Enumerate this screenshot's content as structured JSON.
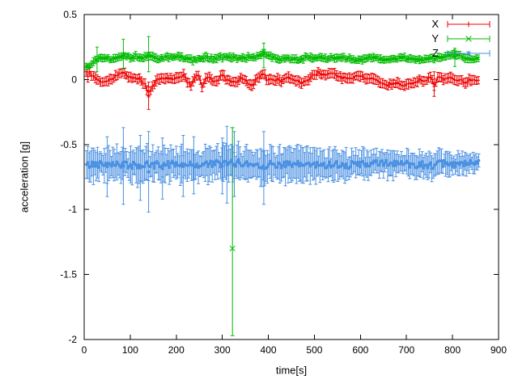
{
  "chart_data": {
    "type": "scatter",
    "style": "points-with-errorbars-and-lines",
    "title": "",
    "xlabel": "time[s]",
    "ylabel": "acceleration [g]",
    "xlim": [
      0,
      900
    ],
    "ylim": [
      -2,
      0.5
    ],
    "xticks": [
      0,
      100,
      200,
      300,
      400,
      500,
      600,
      700,
      800,
      900
    ],
    "yticks": [
      -2,
      -1.5,
      -1,
      -0.5,
      0,
      0.5
    ],
    "grid": false,
    "legend_position": "top-right",
    "background": "#ffffff",
    "axis_color": "#000000",
    "series": [
      {
        "name": "X",
        "color": "#ee0000",
        "marker": "plus",
        "seed": 11,
        "x_start": 4,
        "x_end": 858,
        "step": 4,
        "noise": 0.012,
        "err": 0.028,
        "err_jitter": 0.012,
        "err_profile": [
          [
            4,
            1
          ],
          [
            858,
            1
          ]
        ],
        "trend": [
          [
            4,
            0.06
          ],
          [
            12,
            0.05
          ],
          [
            22,
            0.02
          ],
          [
            32,
            -0.01
          ],
          [
            45,
            -0.02
          ],
          [
            58,
            0.0
          ],
          [
            70,
            0.03
          ],
          [
            82,
            0.05
          ],
          [
            95,
            0.03
          ],
          [
            108,
            0.01
          ],
          [
            120,
            0.0
          ],
          [
            132,
            -0.03
          ],
          [
            138,
            -0.1
          ],
          [
            146,
            -0.07
          ],
          [
            155,
            -0.01
          ],
          [
            168,
            0.01
          ],
          [
            180,
            0.02
          ],
          [
            192,
            0.0
          ],
          [
            205,
            0.01
          ],
          [
            215,
            0.04
          ],
          [
            225,
            -0.02
          ],
          [
            232,
            -0.06
          ],
          [
            240,
            0.02
          ],
          [
            248,
            0.03
          ],
          [
            256,
            -0.05
          ],
          [
            264,
            0.0
          ],
          [
            272,
            0.02
          ],
          [
            280,
            -0.02
          ],
          [
            290,
            0.0
          ],
          [
            300,
            0.03
          ],
          [
            310,
            0.0
          ],
          [
            320,
            -0.01
          ],
          [
            332,
            -0.02
          ],
          [
            342,
            0.01
          ],
          [
            355,
            -0.02
          ],
          [
            365,
            -0.04
          ],
          [
            375,
            0.0
          ],
          [
            383,
            0.04
          ],
          [
            390,
            0.05
          ],
          [
            397,
            -0.02
          ],
          [
            405,
            0.01
          ],
          [
            418,
            0.0
          ],
          [
            430,
            -0.01
          ],
          [
            445,
            0.01
          ],
          [
            460,
            0.0
          ],
          [
            472,
            -0.02
          ],
          [
            485,
            0.0
          ],
          [
            498,
            0.03
          ],
          [
            508,
            0.05
          ],
          [
            520,
            0.04
          ],
          [
            532,
            0.05
          ],
          [
            545,
            0.04
          ],
          [
            558,
            0.02
          ],
          [
            570,
            0.0
          ],
          [
            582,
            0.01
          ],
          [
            595,
            0.03
          ],
          [
            608,
            0.02
          ],
          [
            620,
            0.01
          ],
          [
            632,
            0.0
          ],
          [
            645,
            -0.02
          ],
          [
            658,
            -0.05
          ],
          [
            668,
            -0.03
          ],
          [
            680,
            -0.02
          ],
          [
            692,
            -0.05
          ],
          [
            702,
            -0.04
          ],
          [
            715,
            -0.02
          ],
          [
            728,
            0.0
          ],
          [
            740,
            -0.01
          ],
          [
            752,
            0.03
          ],
          [
            760,
            -0.05
          ],
          [
            768,
            0.02
          ],
          [
            780,
            0.0
          ],
          [
            795,
            0.02
          ],
          [
            810,
            0.0
          ],
          [
            825,
            -0.02
          ],
          [
            840,
            0.0
          ],
          [
            858,
            0.0
          ]
        ],
        "spikes": [
          {
            "x": 8,
            "lo": -0.02,
            "hi": 0.1
          },
          {
            "x": 140,
            "lo": -0.23,
            "hi": -0.02
          },
          {
            "x": 760,
            "lo": -0.13,
            "hi": 0.06
          }
        ],
        "outliers": []
      },
      {
        "name": "Y",
        "color": "#00bb00",
        "marker": "cross",
        "seed": 13,
        "x_start": 4,
        "x_end": 858,
        "step": 4,
        "noise": 0.009,
        "err": 0.02,
        "err_jitter": 0.012,
        "err_profile": [
          [
            4,
            1
          ],
          [
            858,
            1
          ]
        ],
        "trend": [
          [
            4,
            0.1
          ],
          [
            10,
            0.11
          ],
          [
            18,
            0.13
          ],
          [
            28,
            0.16
          ],
          [
            40,
            0.17
          ],
          [
            55,
            0.16
          ],
          [
            70,
            0.17
          ],
          [
            85,
            0.19
          ],
          [
            100,
            0.17
          ],
          [
            115,
            0.18
          ],
          [
            130,
            0.17
          ],
          [
            145,
            0.18
          ],
          [
            160,
            0.16
          ],
          [
            175,
            0.17
          ],
          [
            190,
            0.17
          ],
          [
            205,
            0.18
          ],
          [
            220,
            0.16
          ],
          [
            235,
            0.15
          ],
          [
            250,
            0.16
          ],
          [
            265,
            0.17
          ],
          [
            280,
            0.16
          ],
          [
            295,
            0.17
          ],
          [
            310,
            0.17
          ],
          [
            325,
            0.17
          ],
          [
            340,
            0.16
          ],
          [
            355,
            0.17
          ],
          [
            370,
            0.17
          ],
          [
            382,
            0.18
          ],
          [
            390,
            0.22
          ],
          [
            398,
            0.18
          ],
          [
            410,
            0.17
          ],
          [
            425,
            0.16
          ],
          [
            440,
            0.17
          ],
          [
            455,
            0.15
          ],
          [
            470,
            0.16
          ],
          [
            485,
            0.17
          ],
          [
            500,
            0.16
          ],
          [
            515,
            0.17
          ],
          [
            530,
            0.16
          ],
          [
            545,
            0.17
          ],
          [
            560,
            0.17
          ],
          [
            575,
            0.16
          ],
          [
            590,
            0.15
          ],
          [
            605,
            0.16
          ],
          [
            620,
            0.17
          ],
          [
            635,
            0.16
          ],
          [
            650,
            0.15
          ],
          [
            665,
            0.16
          ],
          [
            680,
            0.16
          ],
          [
            695,
            0.17
          ],
          [
            710,
            0.16
          ],
          [
            725,
            0.15
          ],
          [
            740,
            0.16
          ],
          [
            755,
            0.16
          ],
          [
            770,
            0.17
          ],
          [
            785,
            0.17
          ],
          [
            800,
            0.2
          ],
          [
            812,
            0.19
          ],
          [
            825,
            0.17
          ],
          [
            840,
            0.16
          ],
          [
            858,
            0.17
          ]
        ],
        "spikes": [
          {
            "x": 28,
            "lo": 0.06,
            "hi": 0.25
          },
          {
            "x": 85,
            "lo": 0.08,
            "hi": 0.31
          },
          {
            "x": 140,
            "lo": 0.06,
            "hi": 0.33
          },
          {
            "x": 390,
            "lo": 0.09,
            "hi": 0.28
          },
          {
            "x": 805,
            "lo": 0.1,
            "hi": 0.24
          }
        ],
        "outliers": [
          {
            "x": 322,
            "y": -1.3,
            "lo": -1.97,
            "hi": -0.37
          }
        ]
      },
      {
        "name": "Z",
        "color": "#4a90e2",
        "marker": "star",
        "seed": 42,
        "x_start": 5,
        "x_end": 858,
        "step": 3,
        "noise": 0.028,
        "err": 0.07,
        "err_jitter": 0.08,
        "err_profile": [
          [
            4,
            1
          ],
          [
            450,
            1
          ],
          [
            860,
            0.6
          ]
        ],
        "trend": [
          [
            4,
            -0.66
          ],
          [
            30,
            -0.65
          ],
          [
            60,
            -0.64
          ],
          [
            90,
            -0.66
          ],
          [
            120,
            -0.66
          ],
          [
            150,
            -0.66
          ],
          [
            180,
            -0.65
          ],
          [
            210,
            -0.65
          ],
          [
            240,
            -0.66
          ],
          [
            270,
            -0.65
          ],
          [
            300,
            -0.65
          ],
          [
            330,
            -0.64
          ],
          [
            360,
            -0.65
          ],
          [
            390,
            -0.66
          ],
          [
            420,
            -0.65
          ],
          [
            450,
            -0.66
          ],
          [
            480,
            -0.65
          ],
          [
            510,
            -0.66
          ],
          [
            540,
            -0.65
          ],
          [
            570,
            -0.66
          ],
          [
            600,
            -0.65
          ],
          [
            630,
            -0.65
          ],
          [
            660,
            -0.64
          ],
          [
            690,
            -0.65
          ],
          [
            720,
            -0.65
          ],
          [
            750,
            -0.66
          ],
          [
            780,
            -0.65
          ],
          [
            810,
            -0.65
          ],
          [
            840,
            -0.65
          ],
          [
            858,
            -0.65
          ]
        ],
        "spikes": [
          {
            "x": 50,
            "lo": -0.9,
            "hi": -0.44
          },
          {
            "x": 85,
            "lo": -0.96,
            "hi": -0.37
          },
          {
            "x": 122,
            "lo": -0.93,
            "hi": -0.43
          },
          {
            "x": 140,
            "lo": -1.02,
            "hi": -0.4
          },
          {
            "x": 170,
            "lo": -0.92,
            "hi": -0.45
          },
          {
            "x": 215,
            "lo": -0.9,
            "hi": -0.43
          },
          {
            "x": 238,
            "lo": -0.88,
            "hi": -0.44
          },
          {
            "x": 300,
            "lo": -0.88,
            "hi": -0.45
          },
          {
            "x": 310,
            "lo": -0.95,
            "hi": -0.36
          },
          {
            "x": 326,
            "lo": -0.9,
            "hi": -0.4
          },
          {
            "x": 390,
            "lo": -0.96,
            "hi": -0.4
          }
        ],
        "outliers": []
      }
    ]
  }
}
